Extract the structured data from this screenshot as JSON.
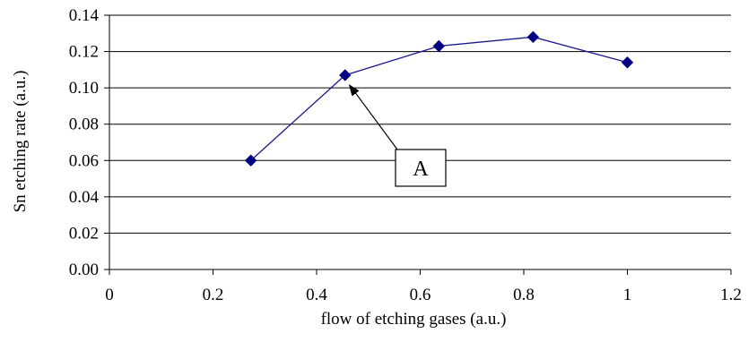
{
  "chart_data": {
    "type": "line",
    "xlabel": "flow of etching gases (a.u.)",
    "ylabel": "Sn etching rate (a.u.)",
    "xlim": [
      0,
      1.2
    ],
    "ylim": [
      0,
      0.14
    ],
    "x_ticks": [
      "0",
      "0.2",
      "0.4",
      "0.6",
      "0.8",
      "1",
      "1.2"
    ],
    "y_ticks": [
      "0.00",
      "0.02",
      "0.04",
      "0.06",
      "0.08",
      "0.10",
      "0.12",
      "0.14"
    ],
    "grid": "horizontal",
    "series": [
      {
        "x": [
          0.273,
          0.455,
          0.636,
          0.818,
          1.0
        ],
        "y": [
          0.06,
          0.107,
          0.123,
          0.128,
          0.114
        ],
        "color": "#1a1a8c",
        "marker": "diamond",
        "marker_color": "#000080"
      }
    ],
    "annotations": [
      {
        "text": "A",
        "target_x": 0.455,
        "target_y": 0.107
      }
    ]
  }
}
